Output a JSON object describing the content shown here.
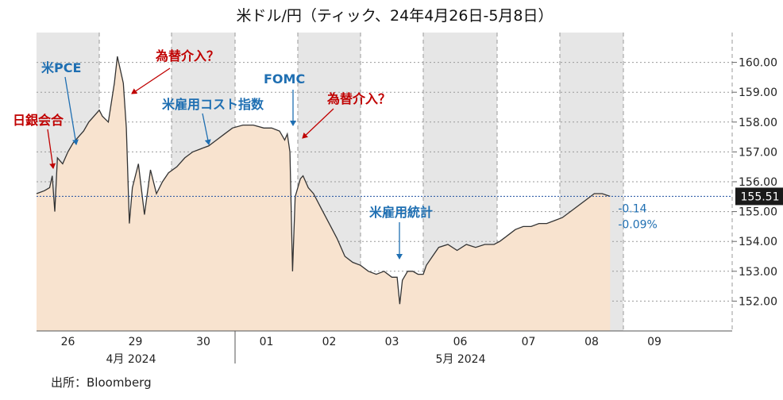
{
  "chart_data": {
    "type": "area",
    "title": "米ドル/円（ティック、24年4月26日-5月8日）",
    "source": "出所：Bloomberg",
    "ylim": [
      151.0,
      161.0
    ],
    "y_ticks": [
      "152.00",
      "153.00",
      "154.00",
      "155.00",
      "156.00",
      "157.00",
      "158.00",
      "159.00",
      "160.00"
    ],
    "day_labels": [
      "26",
      "29",
      "30",
      "01",
      "02",
      "03",
      "06",
      "07",
      "08",
      "09"
    ],
    "month_labels": [
      "4月 2024",
      "5月 2024"
    ],
    "last_value": {
      "label": "155.51",
      "change": "-0.14",
      "change_pct": "-0.09%"
    },
    "series": [
      {
        "values": [
          {
            "x": "04-26 00",
            "y": 155.6
          },
          {
            "x": "04-26 03",
            "y": 155.7
          },
          {
            "x": "04-26 05",
            "y": 155.8
          },
          {
            "x": "04-26 06",
            "y": 156.2
          },
          {
            "x": "04-26 07",
            "y": 155.0
          },
          {
            "x": "04-26 08",
            "y": 156.8
          },
          {
            "x": "04-26 10",
            "y": 156.6
          },
          {
            "x": "04-26 12",
            "y": 157.0
          },
          {
            "x": "04-26 14",
            "y": 157.3
          },
          {
            "x": "04-26 16",
            "y": 157.5
          },
          {
            "x": "04-26 18",
            "y": 157.7
          },
          {
            "x": "04-26 20",
            "y": 158.0
          },
          {
            "x": "04-26 22",
            "y": 158.2
          },
          {
            "x": "04-26 24",
            "y": 158.4
          },
          {
            "x": "04-29 01",
            "y": 158.2
          },
          {
            "x": "04-29 03",
            "y": 158.0
          },
          {
            "x": "04-29 05",
            "y": 159.3
          },
          {
            "x": "04-29 06",
            "y": 160.2
          },
          {
            "x": "04-29 08",
            "y": 159.3
          },
          {
            "x": "04-29 09",
            "y": 157.8
          },
          {
            "x": "04-29 10",
            "y": 154.6
          },
          {
            "x": "04-29 11",
            "y": 155.8
          },
          {
            "x": "04-29 13",
            "y": 156.6
          },
          {
            "x": "04-29 15",
            "y": 154.9
          },
          {
            "x": "04-29 17",
            "y": 156.4
          },
          {
            "x": "04-29 19",
            "y": 155.6
          },
          {
            "x": "04-29 21",
            "y": 156.0
          },
          {
            "x": "04-29 23",
            "y": 156.3
          },
          {
            "x": "04-30 02",
            "y": 156.5
          },
          {
            "x": "04-30 05",
            "y": 156.8
          },
          {
            "x": "04-30 08",
            "y": 157.0
          },
          {
            "x": "04-30 11",
            "y": 157.1
          },
          {
            "x": "04-30 14",
            "y": 157.2
          },
          {
            "x": "04-30 17",
            "y": 157.4
          },
          {
            "x": "04-30 20",
            "y": 157.6
          },
          {
            "x": "04-30 23",
            "y": 157.8
          },
          {
            "x": "05-01 03",
            "y": 157.9
          },
          {
            "x": "05-01 07",
            "y": 157.9
          },
          {
            "x": "05-01 11",
            "y": 157.8
          },
          {
            "x": "05-01 14",
            "y": 157.8
          },
          {
            "x": "05-01 17",
            "y": 157.7
          },
          {
            "x": "05-01 19",
            "y": 157.4
          },
          {
            "x": "05-01 20",
            "y": 157.6
          },
          {
            "x": "05-01 21",
            "y": 157.0
          },
          {
            "x": "05-01 22",
            "y": 153.0
          },
          {
            "x": "05-01 23",
            "y": 155.5
          },
          {
            "x": "05-02 01",
            "y": 156.1
          },
          {
            "x": "05-02 02",
            "y": 156.2
          },
          {
            "x": "05-02 04",
            "y": 155.8
          },
          {
            "x": "05-02 06",
            "y": 155.6
          },
          {
            "x": "05-02 09",
            "y": 155.1
          },
          {
            "x": "05-02 12",
            "y": 154.6
          },
          {
            "x": "05-02 15",
            "y": 154.1
          },
          {
            "x": "05-02 18",
            "y": 153.5
          },
          {
            "x": "05-02 21",
            "y": 153.3
          },
          {
            "x": "05-02 24",
            "y": 153.2
          },
          {
            "x": "05-03 03",
            "y": 153.0
          },
          {
            "x": "05-03 06",
            "y": 152.9
          },
          {
            "x": "05-03 09",
            "y": 153.0
          },
          {
            "x": "05-03 12",
            "y": 152.8
          },
          {
            "x": "05-03 14",
            "y": 152.8
          },
          {
            "x": "05-03 15",
            "y": 151.9
          },
          {
            "x": "05-03 16",
            "y": 152.7
          },
          {
            "x": "05-03 18",
            "y": 153.0
          },
          {
            "x": "05-03 20",
            "y": 153.0
          },
          {
            "x": "05-03 22",
            "y": 152.9
          },
          {
            "x": "05-03 24",
            "y": 152.9
          },
          {
            "x": "05-06 01",
            "y": 153.2
          },
          {
            "x": "05-06 03",
            "y": 153.5
          },
          {
            "x": "05-06 05",
            "y": 153.8
          },
          {
            "x": "05-06 08",
            "y": 153.9
          },
          {
            "x": "05-06 11",
            "y": 153.7
          },
          {
            "x": "05-06 14",
            "y": 153.9
          },
          {
            "x": "05-06 17",
            "y": 153.8
          },
          {
            "x": "05-06 20",
            "y": 153.9
          },
          {
            "x": "05-06 23",
            "y": 153.9
          },
          {
            "x": "05-07 01",
            "y": 154.0
          },
          {
            "x": "05-07 04",
            "y": 154.2
          },
          {
            "x": "05-07 07",
            "y": 154.4
          },
          {
            "x": "05-07 10",
            "y": 154.5
          },
          {
            "x": "05-07 13",
            "y": 154.5
          },
          {
            "x": "05-07 16",
            "y": 154.6
          },
          {
            "x": "05-07 19",
            "y": 154.6
          },
          {
            "x": "05-07 22",
            "y": 154.7
          },
          {
            "x": "05-08 01",
            "y": 154.8
          },
          {
            "x": "05-08 04",
            "y": 155.0
          },
          {
            "x": "05-08 07",
            "y": 155.2
          },
          {
            "x": "05-08 10",
            "y": 155.4
          },
          {
            "x": "05-08 13",
            "y": 155.6
          },
          {
            "x": "05-08 16",
            "y": 155.6
          },
          {
            "x": "05-08 19",
            "y": 155.51
          }
        ]
      }
    ],
    "annotations": [
      {
        "text": "日銀会合",
        "color": "#c00000",
        "at": "04-26 06"
      },
      {
        "text": "米PCE",
        "color": "#1f6fb2",
        "at": "04-26 12"
      },
      {
        "text": "為替介入？",
        "color": "#c00000",
        "at": "04-29 06"
      },
      {
        "text": "米雇用コスト指数",
        "color": "#1f6fb2",
        "at": "04-30 14"
      },
      {
        "text": "FOMC",
        "color": "#1f6fb2",
        "at": "05-01 21"
      },
      {
        "text": "為替介入？",
        "color": "#c00000",
        "at": "05-01 22"
      },
      {
        "text": "米雇用統計",
        "color": "#1f6fb2",
        "at": "05-03 15"
      }
    ],
    "colors": {
      "area_fill": "#f8e3cf",
      "line": "#333333",
      "shade": "#e6e6e6",
      "last_line": "#1f4fa0",
      "last_box": "#1a1a1a",
      "change_text": "#1f6fb2"
    },
    "grid": true
  }
}
